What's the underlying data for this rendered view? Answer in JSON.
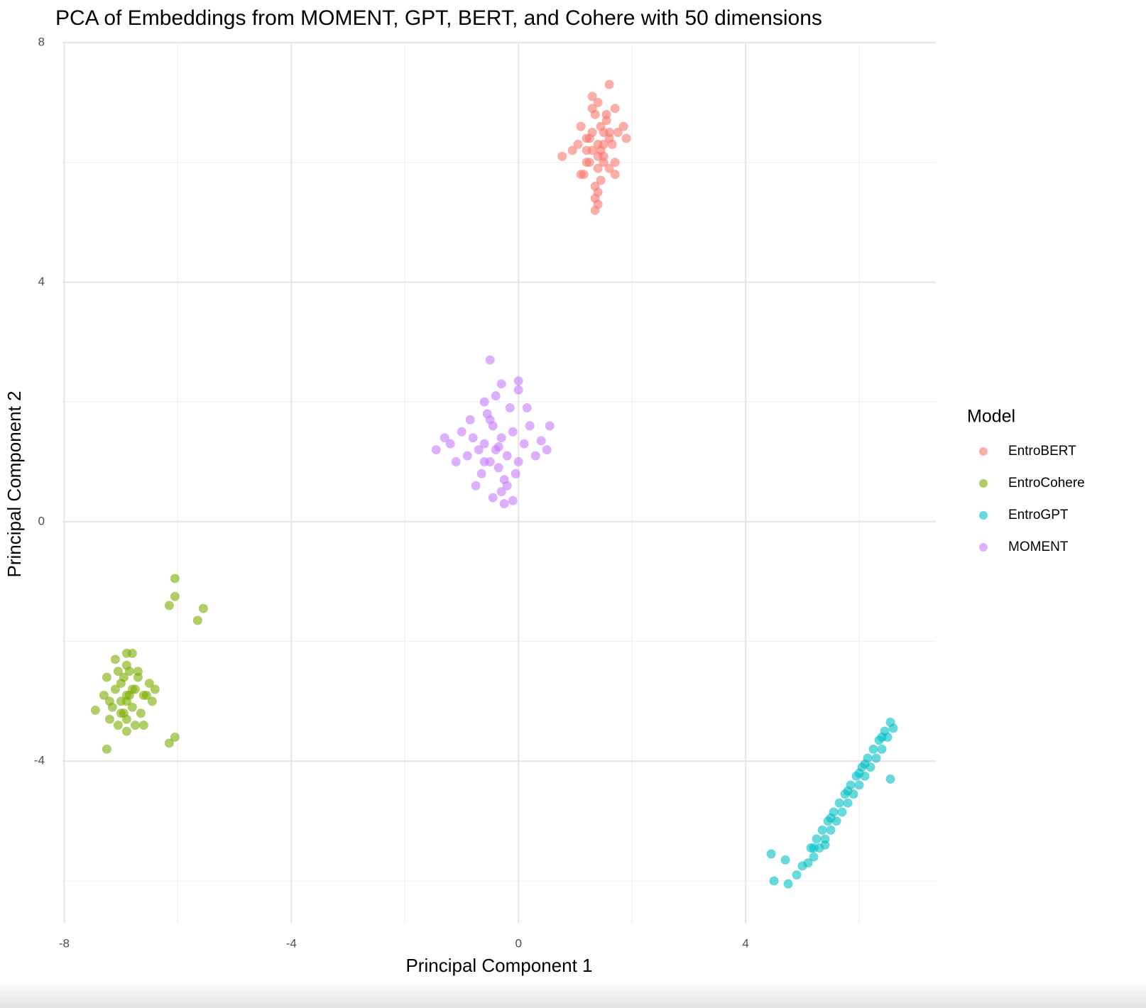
{
  "chart_data": {
    "type": "scatter",
    "title": "PCA of Embeddings from MOMENT, GPT, BERT, and Cohere with 50 dimensions",
    "x_label": "Principal Component 1",
    "y_label": "Principal Component 2",
    "legend_title": "Model",
    "legend_position": "right",
    "grid": true,
    "xlim": [
      -8.03,
      7.35
    ],
    "ylim": [
      -6.7,
      8
    ],
    "xticks": [
      -8,
      -4,
      0,
      4
    ],
    "yticks": [
      -4,
      0,
      4,
      8
    ],
    "x_minor_grid": [
      -6,
      -2,
      2,
      6
    ],
    "y_minor_grid": [
      -6,
      -2,
      2,
      6
    ],
    "series": [
      {
        "name": "EntroBERT",
        "color": "#F8766D",
        "x": [
          1.4,
          1.3,
          1.5,
          1.2,
          1.6,
          1.4,
          1.1,
          1.7,
          1.35,
          1.45,
          1.25,
          1.55,
          1.15,
          1.65,
          1.4,
          1.3,
          1.5,
          1.2,
          1.6,
          1.45,
          1.35,
          1.05,
          1.75,
          1.4,
          1.5,
          1.3,
          1.45,
          1.35,
          1.55,
          1.25,
          1.4,
          1.6,
          1.2,
          1.85,
          0.95,
          1.7,
          1.1,
          1.4,
          1.5,
          1.3,
          1.7,
          0.77,
          1.9,
          1.35,
          1.6
        ],
        "y": [
          6.3,
          6.5,
          6.1,
          6.2,
          6.4,
          5.9,
          6.6,
          6.0,
          6.8,
          5.7,
          6.0,
          6.7,
          5.8,
          6.3,
          5.5,
          6.9,
          6.5,
          6.4,
          5.9,
          6.2,
          5.6,
          6.3,
          6.5,
          7.0,
          6.0,
          6.2,
          6.6,
          5.4,
          6.8,
          6.4,
          6.1,
          6.5,
          6.0,
          6.6,
          6.2,
          6.9,
          5.8,
          5.3,
          6.3,
          7.1,
          5.8,
          6.1,
          6.4,
          5.2,
          7.3
        ]
      },
      {
        "name": "EntroCohere",
        "color": "#7CAE00",
        "x": [
          -6.9,
          -7.0,
          -6.8,
          -7.1,
          -6.7,
          -6.9,
          -7.2,
          -6.6,
          -6.85,
          -6.95,
          -7.05,
          -6.75,
          -6.9,
          -7.15,
          -6.65,
          -6.8,
          -7.0,
          -6.5,
          -7.25,
          -6.9,
          -6.7,
          -7.1,
          -6.85,
          -6.95,
          -6.6,
          -7.0,
          -6.8,
          -6.45,
          -7.3,
          -6.9,
          -6.75,
          -7.05,
          -6.55,
          -6.9,
          -6.4,
          -7.2,
          -6.05,
          -6.05,
          -5.55,
          -5.65,
          -6.15,
          -7.25,
          -6.05,
          -6.15,
          -7.45
        ],
        "y": [
          -2.9,
          -2.7,
          -3.1,
          -2.8,
          -2.6,
          -3.3,
          -3.0,
          -2.9,
          -2.5,
          -3.2,
          -3.4,
          -2.8,
          -2.4,
          -3.1,
          -3.2,
          -2.2,
          -3.0,
          -2.7,
          -2.6,
          -3.5,
          -2.5,
          -2.3,
          -2.9,
          -2.6,
          -3.4,
          -3.2,
          -2.8,
          -3.0,
          -2.9,
          -2.2,
          -3.4,
          -2.5,
          -2.9,
          -3.0,
          -2.8,
          -3.3,
          -0.95,
          -1.25,
          -1.45,
          -1.65,
          -1.4,
          -3.8,
          -3.6,
          -3.7,
          -3.15
        ]
      },
      {
        "name": "EntroGPT",
        "color": "#00BFC4",
        "x": [
          4.9,
          5.0,
          5.1,
          5.15,
          5.2,
          5.25,
          5.3,
          5.35,
          5.4,
          5.45,
          5.5,
          5.55,
          5.6,
          5.65,
          5.7,
          5.75,
          5.8,
          5.85,
          5.9,
          5.95,
          6.0,
          6.05,
          6.1,
          6.15,
          6.2,
          6.25,
          6.3,
          6.35,
          6.4,
          6.45,
          6.5,
          6.55,
          6.6,
          5.2,
          5.5,
          5.8,
          6.1,
          6.4,
          5.4,
          6.0,
          4.5,
          4.45,
          4.7,
          4.75,
          6.55
        ],
        "y": [
          -5.9,
          -5.75,
          -5.7,
          -5.45,
          -5.6,
          -5.3,
          -5.45,
          -5.15,
          -5.3,
          -5.0,
          -5.15,
          -4.85,
          -5.0,
          -4.7,
          -4.85,
          -4.55,
          -4.7,
          -4.4,
          -4.55,
          -4.25,
          -4.4,
          -4.1,
          -4.25,
          -3.95,
          -4.1,
          -3.8,
          -3.95,
          -3.65,
          -3.8,
          -3.5,
          -3.6,
          -3.35,
          -3.45,
          -5.45,
          -4.95,
          -4.5,
          -4.05,
          -3.6,
          -5.4,
          -4.2,
          -6.0,
          -5.55,
          -5.65,
          -6.05,
          -4.3
        ]
      },
      {
        "name": "MOMENT",
        "color": "#C77CFF",
        "x": [
          -0.4,
          -0.3,
          -0.5,
          -0.2,
          -0.6,
          -0.35,
          -0.45,
          -0.1,
          -0.7,
          -0.25,
          -0.55,
          0.0,
          -0.8,
          -0.15,
          -0.65,
          0.1,
          -0.9,
          -0.4,
          -0.3,
          0.2,
          -1.0,
          -0.5,
          -0.2,
          0.3,
          -1.1,
          -0.6,
          0.0,
          -0.75,
          -0.35,
          0.4,
          -1.2,
          -0.05,
          -0.85,
          0.15,
          -0.45,
          -0.3,
          -0.6,
          -0.1,
          -1.3,
          0.5,
          -0.5,
          -1.45,
          0.55,
          -0.25,
          0.0
        ],
        "y": [
          1.2,
          1.4,
          1.0,
          1.1,
          1.3,
          0.9,
          1.6,
          1.5,
          1.2,
          0.7,
          1.8,
          1.0,
          1.4,
          1.9,
          0.8,
          1.3,
          1.1,
          2.1,
          0.5,
          1.6,
          1.5,
          1.7,
          0.6,
          1.1,
          1.0,
          2.0,
          2.2,
          0.6,
          1.25,
          1.35,
          1.3,
          0.8,
          1.7,
          1.9,
          0.4,
          2.3,
          1.0,
          0.35,
          1.4,
          1.2,
          2.7,
          1.2,
          1.6,
          0.3,
          2.35
        ]
      }
    ]
  }
}
